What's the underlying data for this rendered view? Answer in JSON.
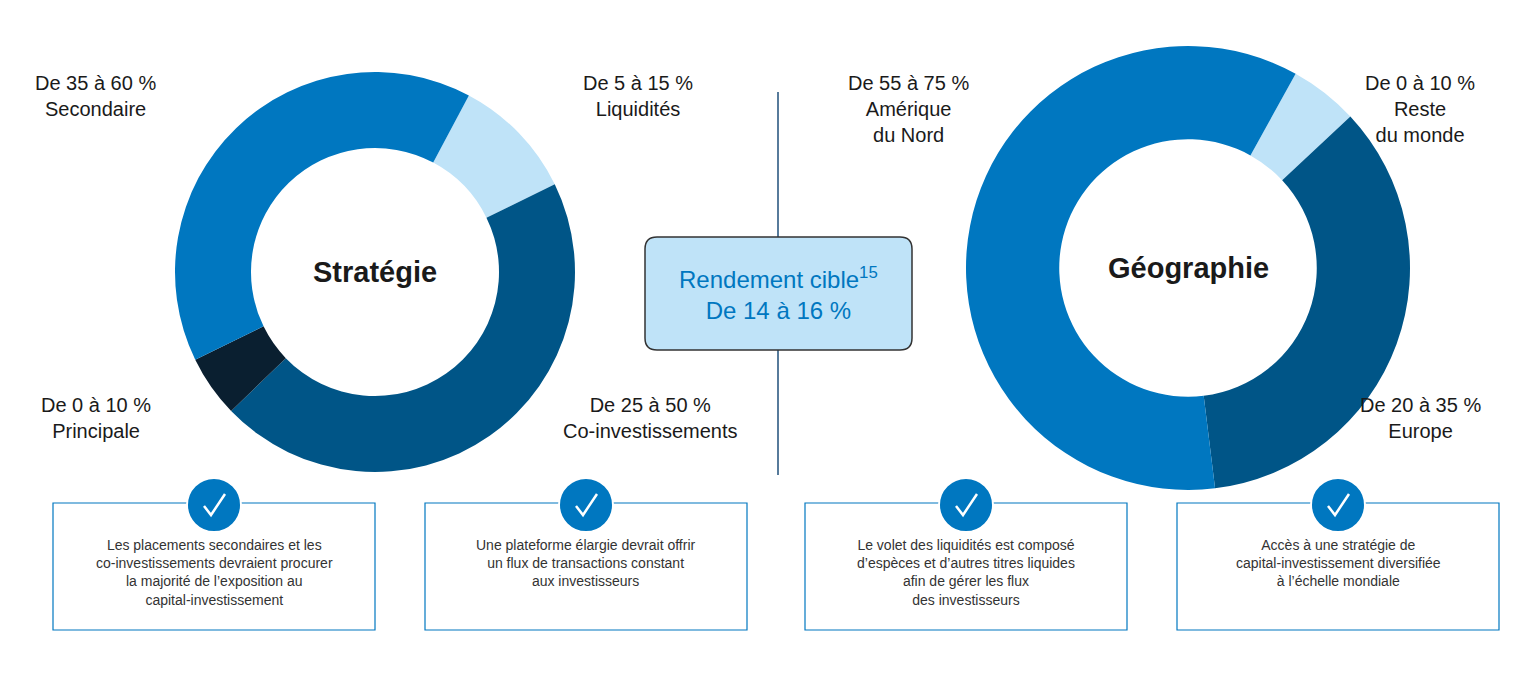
{
  "chart_data": [
    {
      "type": "donut",
      "title": "Stratégie",
      "categories": [
        "Liquidités",
        "Co-investissements",
        "Principale",
        "Secondaire"
      ],
      "values": [
        10,
        45,
        5,
        40
      ],
      "ranges": [
        "De 5 à 15 %",
        "De 25 à 50 %",
        "De 0 à 10 %",
        "De 35 à 60 %"
      ],
      "colors": [
        "#bfe3f8",
        "#005587",
        "#0a1f30",
        "#0077c0"
      ]
    },
    {
      "type": "donut",
      "title": "Géographie",
      "categories": [
        "Reste\ndu monde",
        "Europe",
        "Amérique\ndu Nord"
      ],
      "values": [
        5,
        35,
        60
      ],
      "ranges": [
        "De 0 à 10 %",
        "De 20 à 35 %",
        "De 55 à 75 %"
      ],
      "colors": [
        "#bfe3f8",
        "#005587",
        "#0077c0"
      ]
    }
  ],
  "center_box": {
    "label": "Rendement cible",
    "footnote": "15",
    "value": "De 14 à 16 %"
  },
  "notes": [
    [
      "Les placements secondaires et les",
      "co-investissements devraient procurer",
      "la majorité de l’exposition au",
      "capital-investissement"
    ],
    [
      "Une plateforme élargie devrait offrir",
      "un flux de transactions constant",
      "aux investisseurs"
    ],
    [
      "Le volet des liquidités est composé",
      "d’espèces et d’autres titres liquides",
      "afin de gérer les flux",
      "des investisseurs"
    ],
    [
      "Accès à une stratégie de",
      "capital-investissement diversifiée",
      "à l’échelle mondiale"
    ]
  ]
}
